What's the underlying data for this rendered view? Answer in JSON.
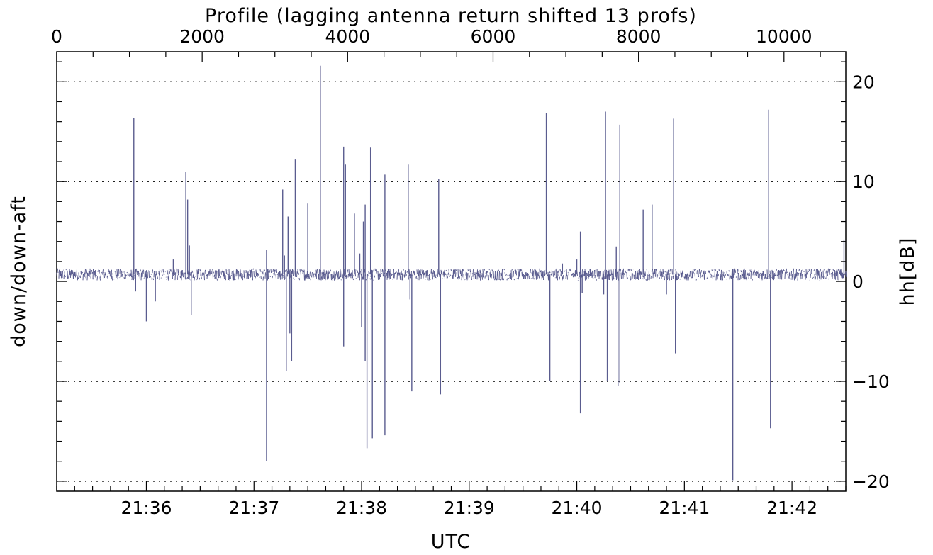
{
  "chart_data": {
    "type": "line",
    "title": "",
    "top_xlabel": "Profile (lagging antenna return shifted 13 profs)",
    "xlabel": "UTC",
    "ylabel_left": "down/down-aft",
    "ylabel_right": "hh[dB]",
    "ylim": [
      -21,
      23
    ],
    "xlim_utc": [
      "21:35:10",
      "21:42:30"
    ],
    "xlim_profile": [
      0,
      10850
    ],
    "grid": "dotted horizontal at y = 20, 10, -10, -20",
    "legend": "none",
    "colors": {
      "series": "#5a5c8f",
      "axis": "#000000",
      "grid": "#000000"
    },
    "bottom_ticks": [
      "21:36",
      "21:37",
      "21:38",
      "21:39",
      "21:40",
      "21:41",
      "21:42"
    ],
    "bottom_tick_values": [
      "21:36:00",
      "21:37:00",
      "21:38:00",
      "21:39:00",
      "21:40:00",
      "21:41:00",
      "21:42:00"
    ],
    "top_ticks": [
      "0",
      "2000",
      "4000",
      "6000",
      "8000",
      "10000"
    ],
    "top_tick_values": [
      0,
      2000,
      4000,
      6000,
      8000,
      10000
    ],
    "right_ticks": [
      "20",
      "10",
      "0",
      "−10",
      "−20"
    ],
    "right_tick_values": [
      20,
      10,
      0,
      -10,
      -20
    ],
    "series": [
      {
        "baseline": 0.7,
        "noise_amplitude": 0.6,
        "spikes": [
          {
            "t": "21:35:53",
            "y": 16.4
          },
          {
            "t": "21:35:54",
            "y": -1.0
          },
          {
            "t": "21:36:00",
            "y": -4.0
          },
          {
            "t": "21:36:05",
            "y": -2.0
          },
          {
            "t": "21:36:15",
            "y": 2.2
          },
          {
            "t": "21:36:22",
            "y": 11.0
          },
          {
            "t": "21:36:23",
            "y": 8.2
          },
          {
            "t": "21:36:24",
            "y": 3.6
          },
          {
            "t": "21:36:25",
            "y": -3.4
          },
          {
            "t": "21:37:07",
            "y": -18.0
          },
          {
            "t": "21:37:07",
            "y": 3.2
          },
          {
            "t": "21:37:16",
            "y": 9.2
          },
          {
            "t": "21:37:17",
            "y": 2.6
          },
          {
            "t": "21:37:18",
            "y": -9.0
          },
          {
            "t": "21:37:19",
            "y": 6.5
          },
          {
            "t": "21:37:20",
            "y": -5.2
          },
          {
            "t": "21:37:21",
            "y": -8.0
          },
          {
            "t": "21:37:23",
            "y": 12.2
          },
          {
            "t": "21:37:30",
            "y": 7.8
          },
          {
            "t": "21:37:37",
            "y": 21.6
          },
          {
            "t": "21:37:50",
            "y": 13.5
          },
          {
            "t": "21:37:50",
            "y": -6.5
          },
          {
            "t": "21:37:51",
            "y": 11.7
          },
          {
            "t": "21:37:56",
            "y": 6.8
          },
          {
            "t": "21:37:59",
            "y": 2.8
          },
          {
            "t": "21:38:00",
            "y": -4.6
          },
          {
            "t": "21:38:01",
            "y": 6.0
          },
          {
            "t": "21:38:02",
            "y": 7.7
          },
          {
            "t": "21:38:02",
            "y": -8.0
          },
          {
            "t": "21:38:03",
            "y": -16.7
          },
          {
            "t": "21:38:05",
            "y": 13.4
          },
          {
            "t": "21:38:06",
            "y": -15.7
          },
          {
            "t": "21:38:13",
            "y": 10.7
          },
          {
            "t": "21:38:13",
            "y": -15.4
          },
          {
            "t": "21:38:26",
            "y": 11.7
          },
          {
            "t": "21:38:27",
            "y": -1.8
          },
          {
            "t": "21:38:28",
            "y": -11.0
          },
          {
            "t": "21:38:36",
            "y": 1.0
          },
          {
            "t": "21:38:43",
            "y": 10.3
          },
          {
            "t": "21:38:44",
            "y": -11.3
          },
          {
            "t": "21:39:43",
            "y": 16.9
          },
          {
            "t": "21:39:45",
            "y": -10.0
          },
          {
            "t": "21:39:52",
            "y": 1.8
          },
          {
            "t": "21:40:00",
            "y": 2.2
          },
          {
            "t": "21:40:02",
            "y": 5.0
          },
          {
            "t": "21:40:02",
            "y": -13.2
          },
          {
            "t": "21:40:03",
            "y": -1.2
          },
          {
            "t": "21:40:15",
            "y": -1.3
          },
          {
            "t": "21:40:16",
            "y": 17.0
          },
          {
            "t": "21:40:17",
            "y": -10.0
          },
          {
            "t": "21:40:22",
            "y": 3.5
          },
          {
            "t": "21:40:23",
            "y": -10.5
          },
          {
            "t": "21:40:24",
            "y": 15.7
          },
          {
            "t": "21:40:24",
            "y": -10.2
          },
          {
            "t": "21:40:37",
            "y": 7.2
          },
          {
            "t": "21:40:42",
            "y": 7.7
          },
          {
            "t": "21:40:50",
            "y": -1.3
          },
          {
            "t": "21:40:54",
            "y": 16.3
          },
          {
            "t": "21:40:55",
            "y": -7.2
          },
          {
            "t": "21:41:27",
            "y": -19.9
          },
          {
            "t": "21:41:47",
            "y": 17.2
          },
          {
            "t": "21:41:48",
            "y": -14.7
          },
          {
            "t": "21:42:29",
            "y": 4.2
          }
        ]
      }
    ]
  }
}
